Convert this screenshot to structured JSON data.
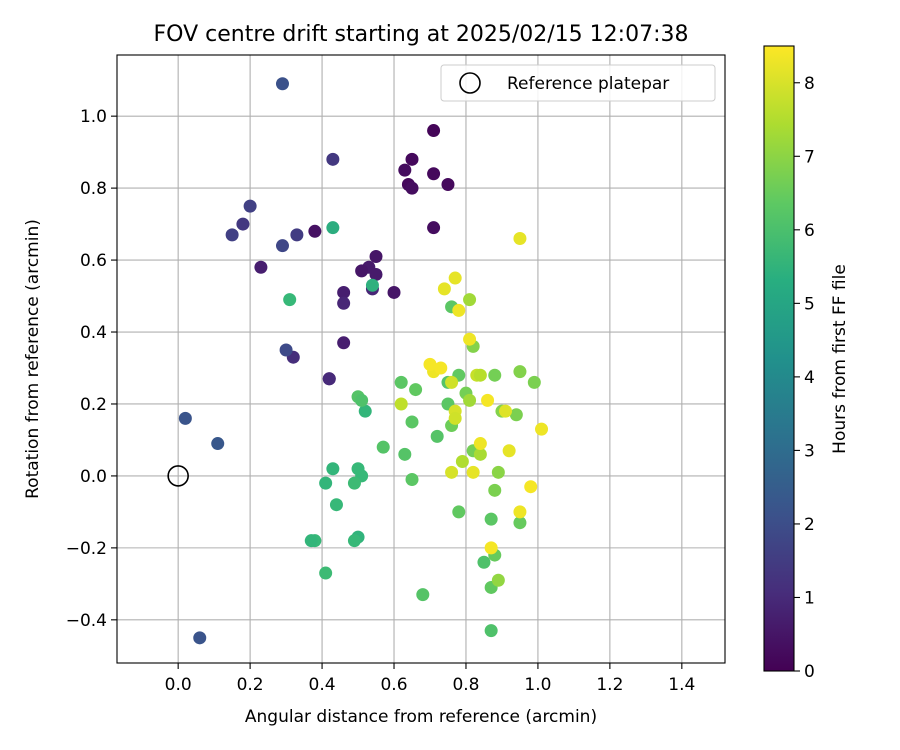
{
  "chart_data": {
    "type": "scatter",
    "title": "FOV centre drift starting at 2025/02/15 12:07:38",
    "xlabel": "Angular distance from reference (arcmin)",
    "ylabel": "Rotation from reference (arcmin)",
    "xlim": [
      -0.17,
      1.52
    ],
    "ylim": [
      -0.52,
      1.17
    ],
    "xticks": [
      "0.0",
      "0.2",
      "0.4",
      "0.6",
      "0.8",
      "1.0",
      "1.2",
      "1.4"
    ],
    "yticks": [
      "−0.4",
      "−0.2",
      "0.0",
      "0.2",
      "0.4",
      "0.6",
      "0.8",
      "1.0"
    ],
    "grid": true,
    "legend": {
      "label": "Reference platepar",
      "position": "top-right",
      "marker": "open-circle"
    },
    "reference_point": {
      "x": 0.0,
      "y": 0.0
    },
    "colorbar": {
      "label": "Hours from first FF file",
      "colormap": "viridis",
      "range": [
        0,
        8.5
      ],
      "ticks": [
        "0",
        "1",
        "2",
        "3",
        "4",
        "5",
        "6",
        "7",
        "8"
      ]
    },
    "points": [
      {
        "x": 0.71,
        "y": 0.96,
        "h": 0.1
      },
      {
        "x": 0.65,
        "y": 0.88,
        "h": 0.2
      },
      {
        "x": 0.63,
        "y": 0.85,
        "h": 0.3
      },
      {
        "x": 0.71,
        "y": 0.84,
        "h": 0.2
      },
      {
        "x": 0.64,
        "y": 0.81,
        "h": 0.2
      },
      {
        "x": 0.75,
        "y": 0.81,
        "h": 0.2
      },
      {
        "x": 0.65,
        "y": 0.8,
        "h": 0.3
      },
      {
        "x": 0.71,
        "y": 0.69,
        "h": 0.3
      },
      {
        "x": 0.38,
        "y": 0.68,
        "h": 0.4
      },
      {
        "x": 0.55,
        "y": 0.61,
        "h": 0.5
      },
      {
        "x": 0.53,
        "y": 0.58,
        "h": 0.6
      },
      {
        "x": 0.51,
        "y": 0.57,
        "h": 0.5
      },
      {
        "x": 0.55,
        "y": 0.56,
        "h": 0.6
      },
      {
        "x": 0.23,
        "y": 0.58,
        "h": 0.7
      },
      {
        "x": 0.54,
        "y": 0.52,
        "h": 0.9
      },
      {
        "x": 0.6,
        "y": 0.51,
        "h": 0.5
      },
      {
        "x": 0.46,
        "y": 0.51,
        "h": 0.7
      },
      {
        "x": 0.46,
        "y": 0.48,
        "h": 0.9
      },
      {
        "x": 0.46,
        "y": 0.37,
        "h": 0.7
      },
      {
        "x": 0.42,
        "y": 0.27,
        "h": 0.8
      },
      {
        "x": 0.42,
        "y": 0.27,
        "h": 1.0
      },
      {
        "x": 0.32,
        "y": 0.33,
        "h": 1.1
      },
      {
        "x": 0.43,
        "y": 0.88,
        "h": 1.4
      },
      {
        "x": 0.33,
        "y": 0.67,
        "h": 1.5
      },
      {
        "x": 0.2,
        "y": 0.75,
        "h": 1.6
      },
      {
        "x": 0.18,
        "y": 0.7,
        "h": 1.4
      },
      {
        "x": 0.15,
        "y": 0.67,
        "h": 1.6
      },
      {
        "x": 0.29,
        "y": 0.64,
        "h": 1.8
      },
      {
        "x": 0.3,
        "y": 0.35,
        "h": 1.9
      },
      {
        "x": 0.29,
        "y": 1.09,
        "h": 2.1
      },
      {
        "x": 0.02,
        "y": 0.16,
        "h": 2.2
      },
      {
        "x": 0.11,
        "y": 0.09,
        "h": 2.3
      },
      {
        "x": 0.06,
        "y": -0.45,
        "h": 2.2
      },
      {
        "x": 0.43,
        "y": 0.69,
        "h": 5.3
      },
      {
        "x": 0.54,
        "y": 0.53,
        "h": 5.4
      },
      {
        "x": 0.31,
        "y": 0.49,
        "h": 5.7
      },
      {
        "x": 0.52,
        "y": 0.18,
        "h": 5.6
      },
      {
        "x": 0.43,
        "y": 0.02,
        "h": 5.6
      },
      {
        "x": 0.5,
        "y": 0.02,
        "h": 5.7
      },
      {
        "x": 0.51,
        "y": 0.0,
        "h": 5.7
      },
      {
        "x": 0.41,
        "y": -0.02,
        "h": 5.6
      },
      {
        "x": 0.49,
        "y": -0.02,
        "h": 5.8
      },
      {
        "x": 0.44,
        "y": -0.08,
        "h": 5.7
      },
      {
        "x": 0.38,
        "y": -0.18,
        "h": 5.7
      },
      {
        "x": 0.37,
        "y": -0.18,
        "h": 5.6
      },
      {
        "x": 0.5,
        "y": -0.17,
        "h": 5.5
      },
      {
        "x": 0.49,
        "y": -0.18,
        "h": 5.7
      },
      {
        "x": 0.41,
        "y": -0.27,
        "h": 5.8
      },
      {
        "x": 0.68,
        "y": -0.33,
        "h": 6.2
      },
      {
        "x": 0.5,
        "y": 0.22,
        "h": 6.2
      },
      {
        "x": 0.51,
        "y": 0.21,
        "h": 6.1
      },
      {
        "x": 0.62,
        "y": 0.26,
        "h": 6.3
      },
      {
        "x": 0.66,
        "y": 0.24,
        "h": 6.4
      },
      {
        "x": 0.65,
        "y": 0.15,
        "h": 6.3
      },
      {
        "x": 0.57,
        "y": 0.08,
        "h": 6.2
      },
      {
        "x": 0.63,
        "y": 0.06,
        "h": 6.2
      },
      {
        "x": 0.65,
        "y": -0.01,
        "h": 6.3
      },
      {
        "x": 0.72,
        "y": 0.11,
        "h": 6.2
      },
      {
        "x": 0.76,
        "y": 0.47,
        "h": 6.3
      },
      {
        "x": 0.78,
        "y": 0.28,
        "h": 6.4
      },
      {
        "x": 0.75,
        "y": 0.26,
        "h": 6.2
      },
      {
        "x": 0.75,
        "y": 0.2,
        "h": 6.3
      },
      {
        "x": 0.76,
        "y": 0.14,
        "h": 6.6
      },
      {
        "x": 0.78,
        "y": -0.1,
        "h": 6.4
      },
      {
        "x": 0.8,
        "y": 0.23,
        "h": 6.7
      },
      {
        "x": 0.82,
        "y": 0.07,
        "h": 6.7
      },
      {
        "x": 0.82,
        "y": 0.36,
        "h": 6.9
      },
      {
        "x": 0.85,
        "y": -0.24,
        "h": 6.1
      },
      {
        "x": 0.87,
        "y": -0.12,
        "h": 6.3
      },
      {
        "x": 0.88,
        "y": 0.28,
        "h": 6.7
      },
      {
        "x": 0.88,
        "y": -0.04,
        "h": 6.8
      },
      {
        "x": 0.87,
        "y": -0.31,
        "h": 6.4
      },
      {
        "x": 0.88,
        "y": -0.22,
        "h": 6.5
      },
      {
        "x": 0.87,
        "y": -0.43,
        "h": 6.1
      },
      {
        "x": 0.89,
        "y": -0.29,
        "h": 7.1
      },
      {
        "x": 0.9,
        "y": 0.18,
        "h": 6.9
      },
      {
        "x": 0.89,
        "y": 0.01,
        "h": 7.0
      },
      {
        "x": 0.94,
        "y": 0.17,
        "h": 6.8
      },
      {
        "x": 0.95,
        "y": 0.29,
        "h": 6.9
      },
      {
        "x": 0.95,
        "y": -0.13,
        "h": 6.5
      },
      {
        "x": 0.99,
        "y": 0.26,
        "h": 6.8
      },
      {
        "x": 0.81,
        "y": 0.21,
        "h": 7.3
      },
      {
        "x": 0.79,
        "y": 0.04,
        "h": 7.5
      },
      {
        "x": 0.81,
        "y": 0.49,
        "h": 7.3
      },
      {
        "x": 0.84,
        "y": 0.06,
        "h": 7.4
      },
      {
        "x": 0.83,
        "y": 0.28,
        "h": 7.8
      },
      {
        "x": 0.84,
        "y": 0.28,
        "h": 7.6
      },
      {
        "x": 0.62,
        "y": 0.2,
        "h": 7.7
      },
      {
        "x": 0.76,
        "y": 0.26,
        "h": 7.9
      },
      {
        "x": 0.77,
        "y": 0.18,
        "h": 8.0
      },
      {
        "x": 0.76,
        "y": 0.01,
        "h": 8.0
      },
      {
        "x": 0.77,
        "y": 0.16,
        "h": 7.9
      },
      {
        "x": 0.74,
        "y": 0.52,
        "h": 8.2
      },
      {
        "x": 0.77,
        "y": 0.55,
        "h": 8.2
      },
      {
        "x": 0.78,
        "y": 0.46,
        "h": 8.3
      },
      {
        "x": 0.71,
        "y": 0.29,
        "h": 8.3
      },
      {
        "x": 0.7,
        "y": 0.31,
        "h": 8.4
      },
      {
        "x": 0.73,
        "y": 0.3,
        "h": 8.4
      },
      {
        "x": 0.81,
        "y": 0.38,
        "h": 8.3
      },
      {
        "x": 0.82,
        "y": 0.01,
        "h": 8.2
      },
      {
        "x": 0.84,
        "y": 0.09,
        "h": 8.3
      },
      {
        "x": 0.86,
        "y": 0.21,
        "h": 8.4
      },
      {
        "x": 0.91,
        "y": 0.18,
        "h": 8.1
      },
      {
        "x": 0.92,
        "y": 0.07,
        "h": 8.2
      },
      {
        "x": 0.95,
        "y": -0.1,
        "h": 8.3
      },
      {
        "x": 0.98,
        "y": -0.03,
        "h": 8.4
      },
      {
        "x": 1.01,
        "y": 0.13,
        "h": 8.3
      },
      {
        "x": 0.95,
        "y": 0.66,
        "h": 8.2
      },
      {
        "x": 0.87,
        "y": -0.2,
        "h": 8.4
      }
    ]
  }
}
